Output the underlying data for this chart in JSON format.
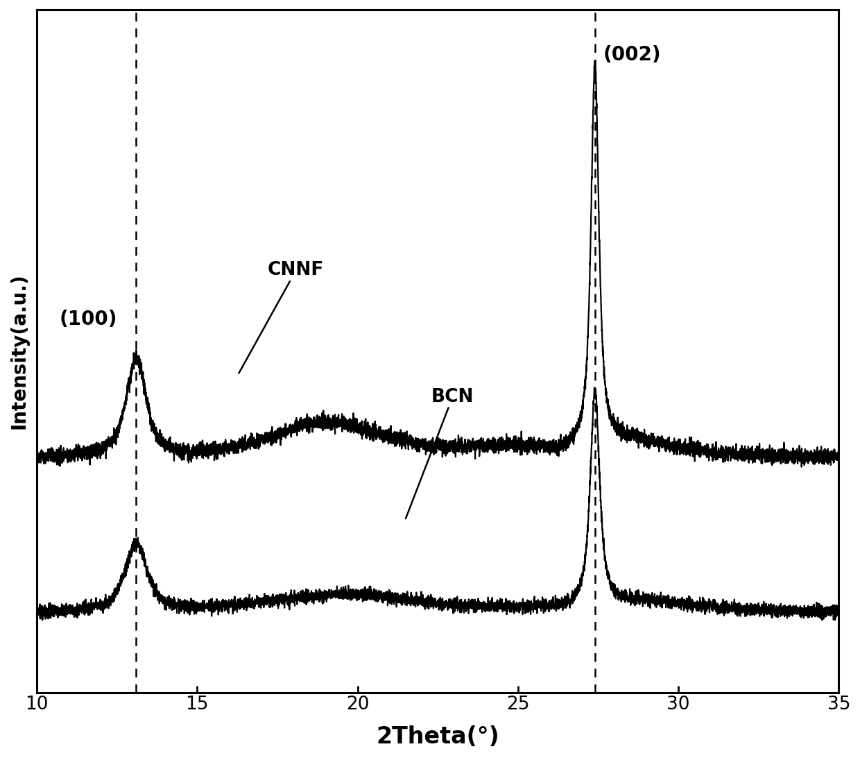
{
  "xlabel": "2Theta(°)",
  "ylabel": "Intensity(a.u.)",
  "xlim": [
    10,
    35
  ],
  "ylim": [
    0,
    1.08
  ],
  "xlabel_fontsize": 24,
  "ylabel_fontsize": 20,
  "tick_fontsize": 19,
  "annotation_100": "(100)",
  "annotation_002": "(002)",
  "label_CNNF": "CNNF",
  "label_BCN": "BCN",
  "vline1": 13.1,
  "vline2": 27.4,
  "background_color": "#ffffff",
  "line_color": "#000000",
  "dashed_color": "#000000",
  "cnnf_base": 0.38,
  "bcn_base": 0.13,
  "noise_scale_cnnf": 0.006,
  "noise_scale_bcn": 0.005
}
